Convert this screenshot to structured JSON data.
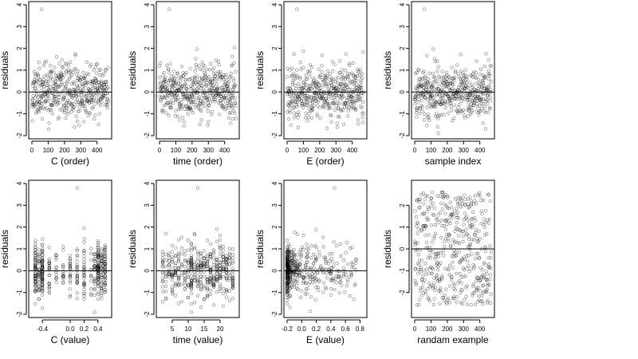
{
  "chart_data": [
    {
      "type": "scatter",
      "xlabel": "C (order)",
      "ylabel": "residuals",
      "xlim": [
        0,
        470
      ],
      "ylim": [
        -2,
        4
      ],
      "xticks": [
        0,
        100,
        200,
        300,
        400
      ],
      "yticks": [
        -2,
        -1,
        0,
        1,
        2,
        3,
        4
      ],
      "reference_line_y": 0,
      "x_kind": "order",
      "n": 470,
      "seed": 11
    },
    {
      "type": "scatter",
      "xlabel": "time (order)",
      "ylabel": "residuals",
      "xlim": [
        0,
        470
      ],
      "ylim": [
        -2,
        4
      ],
      "xticks": [
        0,
        100,
        200,
        300,
        400
      ],
      "yticks": [
        -2,
        -1,
        0,
        1,
        2,
        3,
        4
      ],
      "reference_line_y": 0,
      "x_kind": "order",
      "n": 470,
      "seed": 23
    },
    {
      "type": "scatter",
      "xlabel": "E (order)",
      "ylabel": "residuals",
      "xlim": [
        0,
        470
      ],
      "ylim": [
        -2,
        4
      ],
      "xticks": [
        0,
        100,
        200,
        300,
        400
      ],
      "yticks": [
        -2,
        -1,
        0,
        1,
        2,
        3,
        4
      ],
      "reference_line_y": 0,
      "x_kind": "order",
      "n": 470,
      "seed": 37
    },
    {
      "type": "scatter",
      "xlabel": "sample index",
      "ylabel": "residuals",
      "xlim": [
        0,
        470
      ],
      "ylim": [
        -2,
        4
      ],
      "xticks": [
        0,
        100,
        200,
        300,
        400
      ],
      "yticks": [
        -2,
        -1,
        0,
        1,
        2,
        3,
        4
      ],
      "reference_line_y": 0,
      "x_kind": "order",
      "n": 470,
      "seed": 41
    },
    {
      "type": "scatter",
      "xlabel": "C (value)",
      "ylabel": "residuals",
      "xlim": [
        -0.55,
        0.55
      ],
      "ylim": [
        -2,
        4
      ],
      "xticks": [
        -0.4,
        0.0,
        0.2,
        0.4
      ],
      "xticklabels": [
        "-0.4",
        "0.0",
        "0.2",
        "0.4"
      ],
      "yticks": [
        -2,
        -1,
        0,
        1,
        2,
        3,
        4
      ],
      "reference_line_y": 0,
      "x_kind": "levels",
      "levels": [
        -0.5,
        -0.45,
        -0.4,
        -0.3,
        -0.2,
        -0.1,
        0.0,
        0.1,
        0.2,
        0.3,
        0.35,
        0.4,
        0.45,
        0.5
      ],
      "level_weights": [
        3,
        2,
        5,
        1,
        1,
        1,
        2,
        1,
        2,
        1,
        2,
        4,
        2,
        3
      ],
      "n": 470,
      "seed": 53
    },
    {
      "type": "scatter",
      "xlabel": "time (value)",
      "ylabel": "residuals",
      "xlim": [
        1,
        25
      ],
      "ylim": [
        -2,
        4
      ],
      "xticks": [
        5,
        10,
        15,
        20
      ],
      "yticks": [
        -2,
        -1,
        0,
        1,
        2,
        3,
        4
      ],
      "reference_line_y": 0,
      "x_kind": "levels",
      "levels": [
        2,
        3,
        4,
        5,
        6,
        7,
        8,
        9,
        10,
        11,
        12,
        13,
        14,
        15,
        16,
        17,
        18,
        19,
        20,
        21,
        22,
        23,
        24
      ],
      "level_weights": [
        2,
        2,
        2,
        2,
        2,
        2,
        2,
        2,
        2,
        5,
        2,
        2,
        2,
        2,
        2,
        2,
        2,
        2,
        2,
        2,
        2,
        2,
        2
      ],
      "n": 470,
      "seed": 67
    },
    {
      "type": "scatter",
      "xlabel": "E (value)",
      "ylabel": "residuals",
      "xlim": [
        -0.2,
        0.85
      ],
      "ylim": [
        -2,
        4
      ],
      "xticks": [
        -0.2,
        0.0,
        0.2,
        0.4,
        0.6,
        0.8
      ],
      "xticklabels": [
        "-0.2",
        "0.0",
        "0.2",
        "0.4",
        "0.6",
        "0.8"
      ],
      "yticks": [
        -2,
        -1,
        0,
        1,
        2,
        3,
        4
      ],
      "reference_line_y": 0,
      "x_kind": "skewed",
      "n": 470,
      "seed": 79
    },
    {
      "type": "scatter",
      "xlabel": "randam example",
      "ylabel": "residuals",
      "xlim": [
        0,
        470
      ],
      "ylim": [
        -3,
        3
      ],
      "xticks": [
        0,
        100,
        200,
        300,
        400
      ],
      "yticks": [
        -2,
        -1,
        0,
        1,
        2
      ],
      "reference_line_y": 0,
      "x_kind": "order",
      "y_kind": "uniform",
      "n": 470,
      "seed": 97
    }
  ]
}
